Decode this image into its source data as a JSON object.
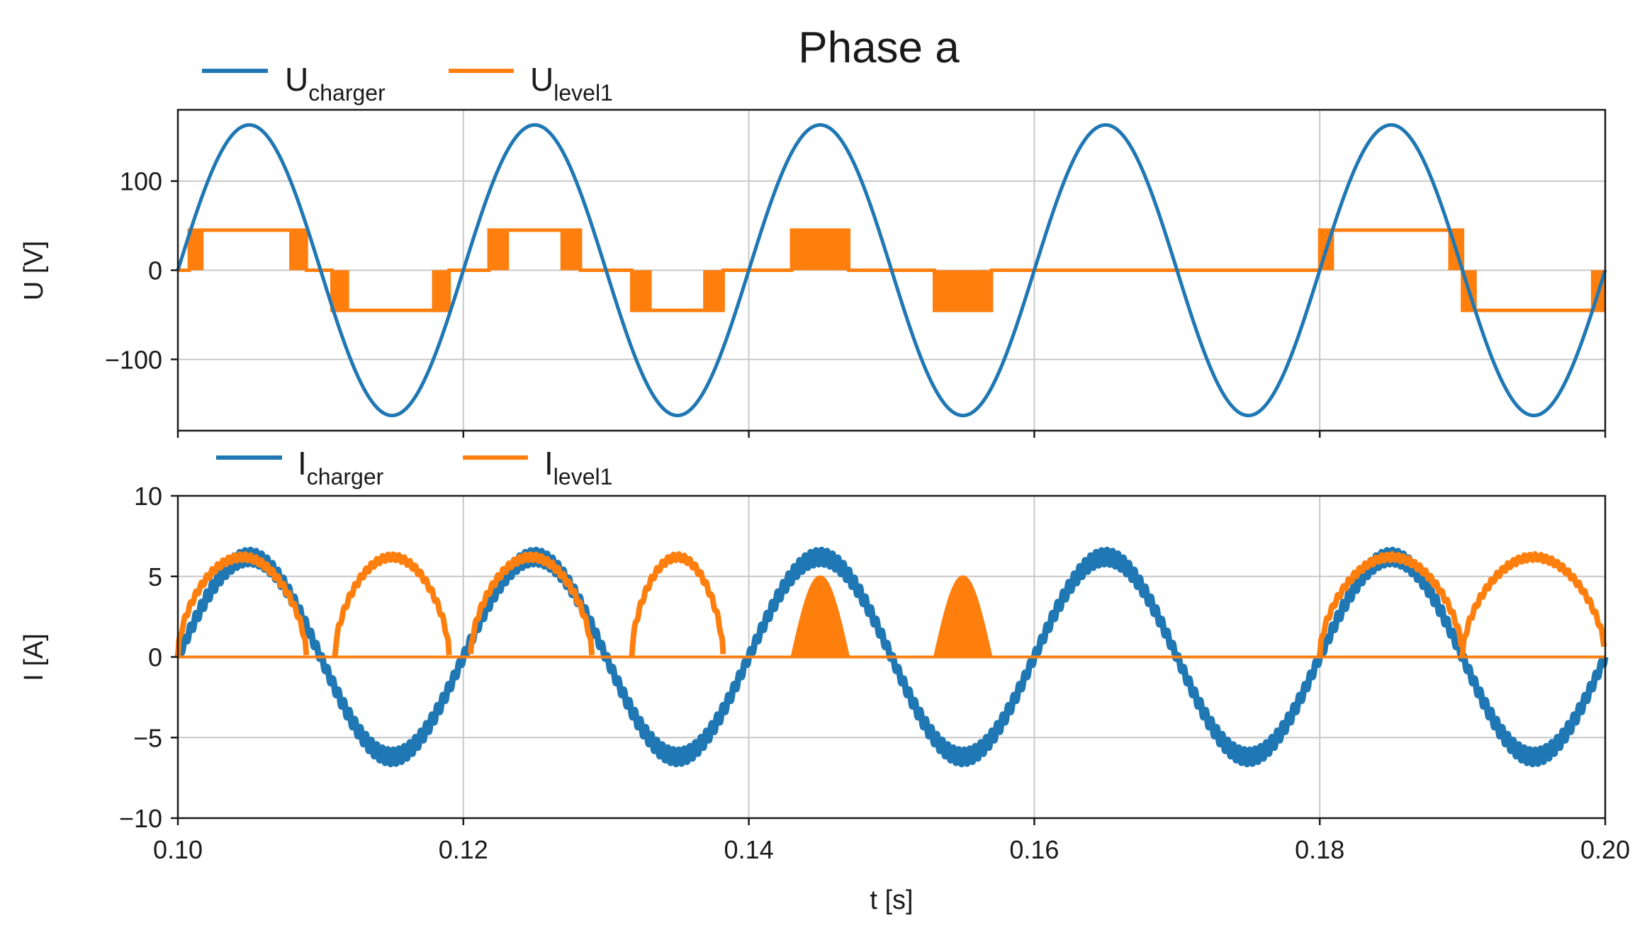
{
  "chart_data": [
    {
      "type": "line",
      "title": "Phase a",
      "xlabel": "",
      "ylabel": "U [V]",
      "xlim": [
        0.1,
        0.2
      ],
      "ylim": [
        -180,
        180
      ],
      "yticks": [
        100,
        0,
        -100
      ],
      "ytick_labels": [
        "100",
        "0",
        "−100"
      ],
      "grid": true,
      "legend_position": "top-left",
      "series": [
        {
          "name": "U_charger",
          "label_main": "U",
          "label_sub": "charger",
          "color": "#1f77b4",
          "kind": "sine",
          "amplitude": 163,
          "frequency_hz": 50,
          "phase_start_s": 0.1
        },
        {
          "name": "U_level1",
          "label_main": "U",
          "label_sub": "level1",
          "color": "#ff7f0e",
          "kind": "pwm",
          "levels": [
            0,
            45,
            -45
          ],
          "segments": [
            {
              "t0": 0.1,
              "t1": 0.1008,
              "level": 0
            },
            {
              "t0": 0.1008,
              "t1": 0.1018,
              "level": 45,
              "pwm": true
            },
            {
              "t0": 0.1018,
              "t1": 0.1078,
              "level": 45
            },
            {
              "t0": 0.1078,
              "t1": 0.109,
              "level": 45,
              "pwm": true
            },
            {
              "t0": 0.109,
              "t1": 0.1108,
              "level": 0
            },
            {
              "t0": 0.1108,
              "t1": 0.112,
              "level": -45,
              "pwm": true
            },
            {
              "t0": 0.112,
              "t1": 0.1178,
              "level": -45
            },
            {
              "t0": 0.1178,
              "t1": 0.119,
              "level": -45,
              "pwm": true
            },
            {
              "t0": 0.119,
              "t1": 0.1218,
              "level": 0
            },
            {
              "t0": 0.1218,
              "t1": 0.1232,
              "level": 45,
              "pwm": true
            },
            {
              "t0": 0.1232,
              "t1": 0.1268,
              "level": 45
            },
            {
              "t0": 0.1268,
              "t1": 0.1282,
              "level": 45,
              "pwm": true
            },
            {
              "t0": 0.1282,
              "t1": 0.1318,
              "level": 0
            },
            {
              "t0": 0.1318,
              "t1": 0.1332,
              "level": -45,
              "pwm": true
            },
            {
              "t0": 0.1332,
              "t1": 0.1368,
              "level": -45
            },
            {
              "t0": 0.1368,
              "t1": 0.1382,
              "level": -45,
              "pwm": true
            },
            {
              "t0": 0.1382,
              "t1": 0.143,
              "level": 0
            },
            {
              "t0": 0.143,
              "t1": 0.147,
              "level": 45,
              "pwm": true
            },
            {
              "t0": 0.147,
              "t1": 0.153,
              "level": 0
            },
            {
              "t0": 0.153,
              "t1": 0.157,
              "level": -45,
              "pwm": true
            },
            {
              "t0": 0.157,
              "t1": 0.18,
              "level": 0
            },
            {
              "t0": 0.18,
              "t1": 0.181,
              "level": 45,
              "pwm": true
            },
            {
              "t0": 0.181,
              "t1": 0.189,
              "level": 45
            },
            {
              "t0": 0.189,
              "t1": 0.19,
              "level": 45,
              "pwm": true
            },
            {
              "t0": 0.19,
              "t1": 0.191,
              "level": -45,
              "pwm": true
            },
            {
              "t0": 0.191,
              "t1": 0.199,
              "level": -45
            },
            {
              "t0": 0.199,
              "t1": 0.2,
              "level": -45,
              "pwm": true
            }
          ]
        }
      ]
    },
    {
      "type": "line",
      "title": "",
      "xlabel": "t [s]",
      "ylabel": "I [A]",
      "xlim": [
        0.1,
        0.2
      ],
      "ylim": [
        -10,
        10
      ],
      "xticks": [
        0.1,
        0.12,
        0.14,
        0.16,
        0.18,
        0.2
      ],
      "xtick_labels": [
        "0.10",
        "0.12",
        "0.14",
        "0.16",
        "0.18",
        "0.20"
      ],
      "yticks": [
        10,
        5,
        0,
        -5,
        -10
      ],
      "ytick_labels": [
        "10",
        "5",
        "0",
        "−5",
        "−10"
      ],
      "grid": true,
      "legend_position": "top-left",
      "series": [
        {
          "name": "I_charger",
          "label_main": "I",
          "label_sub": "charger",
          "color": "#1f77b4",
          "kind": "sine_with_ripple",
          "amplitude": 6.2,
          "ripple": 0.45,
          "frequency_hz": 50,
          "phase_start_s": 0.1
        },
        {
          "name": "I_level1",
          "label_main": "I",
          "label_sub": "level1",
          "color": "#ff7f0e",
          "kind": "rectified_pulses",
          "pulses": [
            {
              "t0": 0.1,
              "t1": 0.109,
              "peak": 6.2
            },
            {
              "t0": 0.111,
              "t1": 0.119,
              "peak": 6.2
            },
            {
              "t0": 0.1205,
              "t1": 0.129,
              "peak": 6.2
            },
            {
              "t0": 0.1318,
              "t1": 0.1382,
              "peak": 6.2
            },
            {
              "t0": 0.143,
              "t1": 0.147,
              "peak": 5.0,
              "pwm": true
            },
            {
              "t0": 0.153,
              "t1": 0.157,
              "peak": 5.0,
              "pwm": true
            },
            {
              "t0": 0.18,
              "t1": 0.19,
              "peak": 6.2
            },
            {
              "t0": 0.19,
              "t1": 0.2,
              "peak": 6.2
            }
          ]
        }
      ]
    }
  ]
}
